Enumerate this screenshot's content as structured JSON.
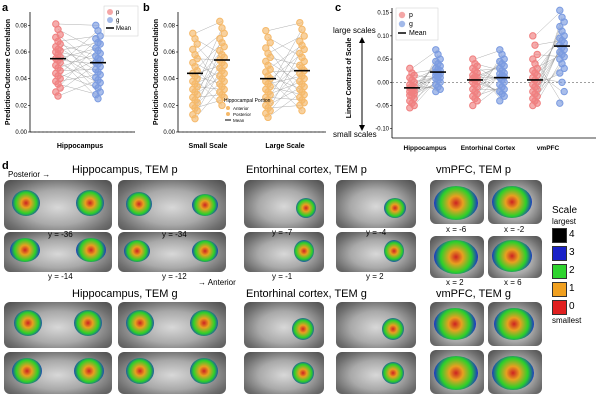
{
  "panels": {
    "a": {
      "label": "a",
      "ylabel": "Prediction-Outcome Correlation",
      "xlabel": "Hippocampus",
      "yticks": [
        "0.00",
        "0.02",
        "0.04",
        "0.06",
        "0.08"
      ],
      "legend": [
        {
          "key": "p",
          "label": "p"
        },
        {
          "key": "g",
          "label": "g"
        },
        {
          "key": "mean",
          "label": "Mean"
        }
      ]
    },
    "b": {
      "label": "b",
      "ylabel": "Prediction-Outcome Correlation",
      "xlabels": [
        "Small Scale",
        "Large Scale"
      ],
      "yticks": [
        "0.00",
        "0.02",
        "0.04",
        "0.06",
        "0.08"
      ],
      "legend_title": "Hippocampal Portion",
      "legend": [
        {
          "key": "anterior",
          "label": "Anterior"
        },
        {
          "key": "posterior",
          "label": "Posterior"
        },
        {
          "key": "mean",
          "label": "Mean"
        }
      ]
    },
    "c": {
      "label": "c",
      "ylabel": "Linear Contrast of Scale",
      "ylabel_top": "large scales",
      "ylabel_bottom": "small scales",
      "xlabels": [
        "Hippocampus",
        "Entorhinal Cortex",
        "vmPFC"
      ],
      "yticks": [
        "-0.10",
        "-0.05",
        "0.00",
        "0.05",
        "0.10",
        "0.15"
      ],
      "legend": [
        {
          "key": "p",
          "label": "p"
        },
        {
          "key": "g",
          "label": "g"
        },
        {
          "key": "mean",
          "label": "Mean"
        }
      ]
    },
    "d": {
      "label": "d",
      "posterior": "Posterior →",
      "anterior": "→ Anterior",
      "titles": {
        "hip_p": "Hippocampus, TEM p",
        "ent_p": "Entorhinal cortex, TEM p",
        "vm_p": "vmPFC, TEM p",
        "hip_g": "Hippocampus, TEM g",
        "ent_g": "Entorhinal cortex, TEM g",
        "vm_g": "vmPFC, TEM g"
      },
      "coords": {
        "hip": [
          "y = -36",
          "y = -34",
          "y = -14",
          "y = -12"
        ],
        "ent": [
          "y = -7",
          "y = -4",
          "y = -1",
          "y = 2"
        ],
        "vm": [
          "x = -6",
          "x = -2",
          "x = 2",
          "x = 6"
        ]
      },
      "scale_legend": {
        "title": "Scale",
        "top": "largest",
        "bottom": "smallest",
        "levels": [
          {
            "label": "4",
            "color": "#000000"
          },
          {
            "label": "3",
            "color": "#1a22c8"
          },
          {
            "label": "2",
            "color": "#2fd42f"
          },
          {
            "label": "1",
            "color": "#f0a020"
          },
          {
            "label": "0",
            "color": "#e02020"
          }
        ]
      }
    }
  },
  "colors": {
    "p": "#f08080",
    "g": "#7b9be0",
    "b_points": "#f5b96a",
    "mean": "#000000"
  },
  "chart_data": [
    {
      "type": "scatter",
      "panel": "a",
      "xlabel": "Hippocampus",
      "ylabel": "Prediction-Outcome Correlation",
      "ylim": [
        0,
        0.09
      ],
      "categories": [
        "p",
        "g"
      ],
      "series": [
        {
          "name": "p",
          "values": [
            0.081,
            0.077,
            0.073,
            0.071,
            0.068,
            0.066,
            0.064,
            0.062,
            0.061,
            0.06,
            0.058,
            0.056,
            0.055,
            0.054,
            0.052,
            0.05,
            0.048,
            0.046,
            0.044,
            0.042,
            0.04,
            0.038,
            0.036,
            0.033,
            0.03,
            0.027
          ],
          "mean": 0.055
        },
        {
          "name": "g",
          "values": [
            0.08,
            0.076,
            0.072,
            0.07,
            0.067,
            0.066,
            0.063,
            0.061,
            0.059,
            0.057,
            0.055,
            0.054,
            0.052,
            0.051,
            0.049,
            0.047,
            0.045,
            0.043,
            0.041,
            0.039,
            0.037,
            0.035,
            0.033,
            0.03,
            0.028,
            0.025
          ],
          "mean": 0.052
        }
      ],
      "grid": false,
      "legend": "top-right"
    },
    {
      "type": "scatter",
      "panel": "b",
      "ylabel": "Prediction-Outcome Correlation",
      "ylim": [
        0,
        0.09
      ],
      "categories": [
        "Small Scale",
        "Large Scale"
      ],
      "series": [
        {
          "name": "Anterior",
          "group": "Small Scale",
          "values": [
            0.074,
            0.07,
            0.066,
            0.062,
            0.058,
            0.055,
            0.052,
            0.049,
            0.046,
            0.044,
            0.042,
            0.04,
            0.038,
            0.036,
            0.034,
            0.032,
            0.03,
            0.028,
            0.026,
            0.024,
            0.022,
            0.02,
            0.018,
            0.016,
            0.013,
            0.01
          ],
          "mean": 0.044
        },
        {
          "name": "Posterior",
          "group": "Small Scale",
          "values": [
            0.083,
            0.078,
            0.074,
            0.07,
            0.067,
            0.064,
            0.061,
            0.058,
            0.056,
            0.054,
            0.052,
            0.05,
            0.048,
            0.046,
            0.044,
            0.042,
            0.04,
            0.038,
            0.036,
            0.034,
            0.032,
            0.03,
            0.028,
            0.026,
            0.024,
            0.02
          ],
          "mean": 0.054
        },
        {
          "name": "Anterior",
          "group": "Large Scale",
          "values": [
            0.076,
            0.071,
            0.067,
            0.063,
            0.059,
            0.056,
            0.053,
            0.05,
            0.047,
            0.045,
            0.042,
            0.04,
            0.038,
            0.036,
            0.034,
            0.032,
            0.03,
            0.028,
            0.026,
            0.024,
            0.022,
            0.02,
            0.018,
            0.016,
            0.014,
            0.011
          ],
          "mean": 0.04
        },
        {
          "name": "Posterior",
          "group": "Large Scale",
          "values": [
            0.082,
            0.077,
            0.072,
            0.068,
            0.065,
            0.062,
            0.059,
            0.056,
            0.053,
            0.05,
            0.048,
            0.046,
            0.044,
            0.042,
            0.04,
            0.038,
            0.036,
            0.034,
            0.032,
            0.03,
            0.028,
            0.026,
            0.024,
            0.022,
            0.02,
            0.016
          ],
          "mean": 0.046
        }
      ],
      "grid": false,
      "legend": "bottom-center"
    },
    {
      "type": "scatter",
      "panel": "c",
      "ylabel": "Linear Contrast of Scale",
      "ylim": [
        -0.12,
        0.16
      ],
      "categories": [
        "Hippocampus",
        "Entorhinal Cortex",
        "vmPFC"
      ],
      "series": [
        {
          "name": "p",
          "group": "Hippocampus",
          "values": [
            0.03,
            0.02,
            0.015,
            0.01,
            0.005,
            0.0,
            -0.005,
            -0.008,
            -0.01,
            -0.012,
            -0.015,
            -0.018,
            -0.02,
            -0.022,
            -0.025,
            -0.028,
            -0.03,
            -0.035,
            -0.04,
            -0.045,
            -0.05,
            -0.055
          ],
          "mean": -0.012
        },
        {
          "name": "g",
          "group": "Hippocampus",
          "values": [
            0.07,
            0.06,
            0.05,
            0.045,
            0.04,
            0.035,
            0.03,
            0.028,
            0.025,
            0.022,
            0.02,
            0.018,
            0.015,
            0.012,
            0.01,
            0.008,
            0.005,
            0.0,
            -0.005,
            -0.01,
            -0.015,
            -0.02
          ],
          "mean": 0.022
        },
        {
          "name": "p",
          "group": "Entorhinal Cortex",
          "values": [
            0.05,
            0.04,
            0.035,
            0.03,
            0.025,
            0.02,
            0.015,
            0.012,
            0.01,
            0.008,
            0.005,
            0.002,
            0.0,
            -0.005,
            -0.01,
            -0.015,
            -0.02,
            -0.025,
            -0.03,
            -0.035,
            -0.04,
            -0.05
          ],
          "mean": 0.005
        },
        {
          "name": "g",
          "group": "Entorhinal Cortex",
          "values": [
            0.07,
            0.06,
            0.05,
            0.045,
            0.04,
            0.035,
            0.03,
            0.025,
            0.02,
            0.018,
            0.015,
            0.012,
            0.01,
            0.005,
            0.0,
            -0.005,
            -0.01,
            -0.015,
            -0.02,
            -0.025,
            -0.03,
            -0.04
          ],
          "mean": 0.01
        },
        {
          "name": "p",
          "group": "vmPFC",
          "values": [
            0.1,
            0.08,
            0.06,
            0.05,
            0.04,
            0.03,
            0.025,
            0.02,
            0.015,
            0.01,
            0.005,
            0.0,
            -0.005,
            -0.01,
            -0.015,
            -0.02,
            -0.025,
            -0.03,
            -0.035,
            -0.04,
            -0.045,
            -0.05
          ],
          "mean": 0.005
        },
        {
          "name": "g",
          "group": "vmPFC",
          "values": [
            0.155,
            0.14,
            0.13,
            0.12,
            0.11,
            0.1,
            0.095,
            0.09,
            0.085,
            0.08,
            0.075,
            0.07,
            0.065,
            0.06,
            0.055,
            0.05,
            0.04,
            0.03,
            0.02,
            0.0,
            -0.02,
            -0.045
          ],
          "mean": 0.078
        }
      ],
      "grid": false,
      "legend": "top-left"
    }
  ]
}
